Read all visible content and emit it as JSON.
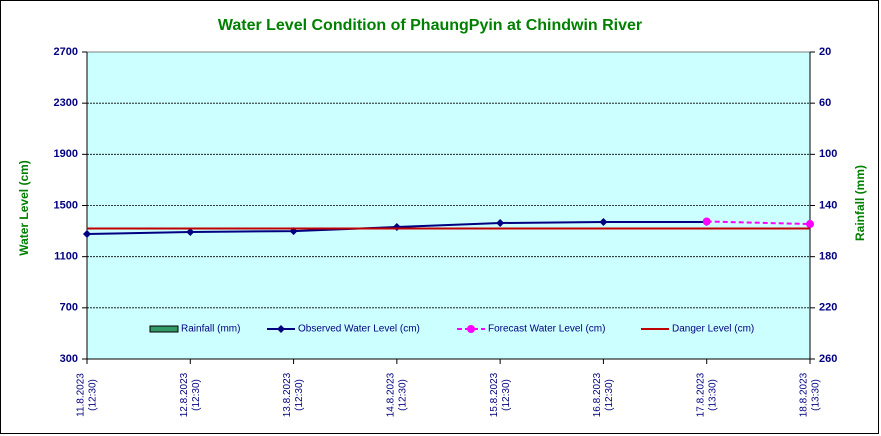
{
  "chart_data": {
    "type": "line",
    "title": "Water Level Condition of PhaungPyin at Chindwin River",
    "ylabel": "Water Level (cm)",
    "y2label": "Rainfall (mm)",
    "categories": [
      "11.8.2023",
      "12.8.2023",
      "13.8.2023",
      "14.8.2023",
      "15.8.2023",
      "16.8.2023",
      "17.8.2023",
      "18.8.2023"
    ],
    "times": [
      "(12:30)",
      "(12:30)",
      "(12:30)",
      "(12:30)",
      "(12:30)",
      "(12:30)",
      "(13:30)",
      "(13:30)"
    ],
    "ylim": [
      300,
      2700
    ],
    "yticks": [
      300,
      700,
      1100,
      1500,
      1900,
      2300,
      2700
    ],
    "y2lim": [
      260,
      20
    ],
    "y2ticks": [
      260,
      220,
      180,
      140,
      100,
      60,
      20
    ],
    "grid": true,
    "series": [
      {
        "name": "Rainfall (mm)",
        "type": "bar",
        "axis": "y2",
        "color": "#339966",
        "values": [
          null,
          null,
          null,
          null,
          null,
          null,
          null,
          null
        ]
      },
      {
        "name": "Observed Water Level (cm)",
        "type": "line",
        "marker": "diamond",
        "dash": false,
        "color": "#000080",
        "values": [
          1277,
          1293,
          1300,
          1332,
          1363,
          1371,
          1371,
          null
        ]
      },
      {
        "name": "Forecast Water Level (cm)",
        "type": "line",
        "marker": "circle",
        "dash": true,
        "color": "#ff00ff",
        "values": [
          null,
          null,
          null,
          null,
          null,
          null,
          1375,
          1355
        ]
      },
      {
        "name": "Danger Level (cm)",
        "type": "line",
        "marker": "none",
        "dash": false,
        "color": "#c00000",
        "values": [
          1320,
          1320,
          1320,
          1320,
          1320,
          1320,
          1320,
          1320
        ]
      }
    ]
  }
}
